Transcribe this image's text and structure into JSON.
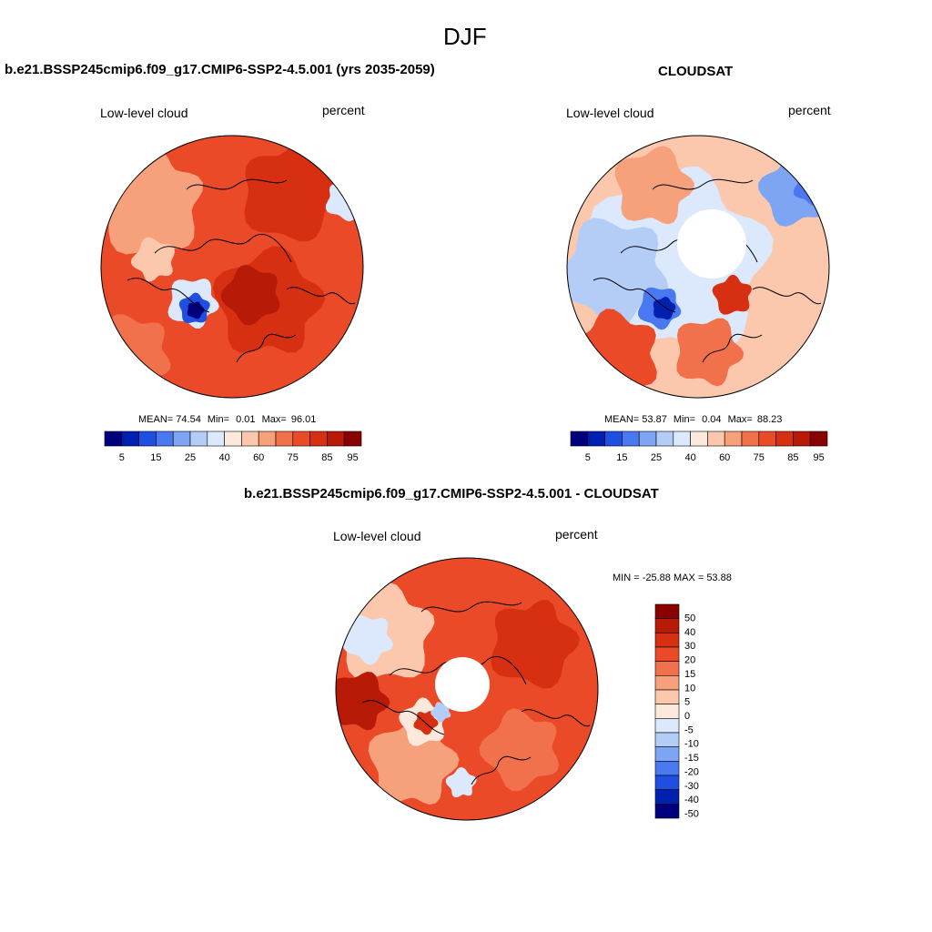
{
  "figure": {
    "season": "DJF",
    "model_panel_title": "b.e21.BSSP245cmip6.f09_g17.CMIP6-SSP2-4.5.001 (yrs 2035-2059)",
    "obs_panel_title": "CLOUDSAT",
    "diff_panel_title": "b.e21.BSSP245cmip6.f09_g17.CMIP6-SSP2-4.5.001 - CLOUDSAT"
  },
  "panels": {
    "model": {
      "variable": "Low-level cloud",
      "units": "percent",
      "stats": {
        "mean_label": "MEAN=",
        "mean": "74.54",
        "min_label": "Min=",
        "min": "0.01",
        "max_label": "Max=",
        "max": "96.01"
      }
    },
    "obs": {
      "variable": "Low-level cloud",
      "units": "percent",
      "stats": {
        "mean_label": "MEAN=",
        "mean": "53.87",
        "min_label": "Min=",
        "min": "0.04",
        "max_label": "Max=",
        "max": "88.23"
      }
    },
    "diff": {
      "variable": "Low-level cloud",
      "units": "percent",
      "stats_text": "MIN = -25.88 MAX =  53.88"
    }
  },
  "colors": {
    "abs_scale": [
      "#00007f",
      "#0020b0",
      "#1f4fe0",
      "#4a78f0",
      "#7ea4f4",
      "#b3cdf7",
      "#dce8fb",
      "#fde9dc",
      "#fbc7ad",
      "#f7a07c",
      "#f2714d",
      "#ea4a28",
      "#d62f12",
      "#b81a08",
      "#8b0000"
    ],
    "diff_scale": [
      "#00007f",
      "#0020b0",
      "#1f4fe0",
      "#4a78f0",
      "#7ea4f4",
      "#b3cdf7",
      "#dce8fb",
      "#fde9dc",
      "#fbc7ad",
      "#f7a07c",
      "#f2714d",
      "#ea4a28",
      "#d62f12",
      "#b81a08",
      "#8b0000"
    ]
  },
  "chart_data": [
    {
      "type": "heatmap",
      "title": "b.e21.BSSP245cmip6.f09_g17.CMIP6-SSP2-4.5.001 (yrs 2035-2059)",
      "variable": "Low-level cloud",
      "units": "percent",
      "projection": "north polar stereographic",
      "colorbar": {
        "orientation": "horizontal",
        "tick_labels": [
          "5",
          "15",
          "25",
          "40",
          "60",
          "75",
          "85",
          "95"
        ]
      },
      "mean": 74.54,
      "min": 0.01,
      "max": 96.01
    },
    {
      "type": "heatmap",
      "title": "CLOUDSAT",
      "variable": "Low-level cloud",
      "units": "percent",
      "projection": "north polar stereographic",
      "colorbar": {
        "orientation": "horizontal",
        "tick_labels": [
          "5",
          "15",
          "25",
          "40",
          "60",
          "75",
          "85",
          "95"
        ]
      },
      "mean": 53.87,
      "min": 0.04,
      "max": 88.23
    },
    {
      "type": "heatmap",
      "title": "b.e21.BSSP245cmip6.f09_g17.CMIP6-SSP2-4.5.001 - CLOUDSAT",
      "variable": "Low-level cloud",
      "units": "percent",
      "projection": "north polar stereographic",
      "colorbar": {
        "orientation": "vertical",
        "tick_labels": [
          "50",
          "40",
          "30",
          "20",
          "15",
          "10",
          "5",
          "0",
          "-5",
          "-10",
          "-15",
          "-20",
          "-30",
          "-40",
          "-50"
        ]
      },
      "min": -25.88,
      "max": 53.88
    }
  ]
}
